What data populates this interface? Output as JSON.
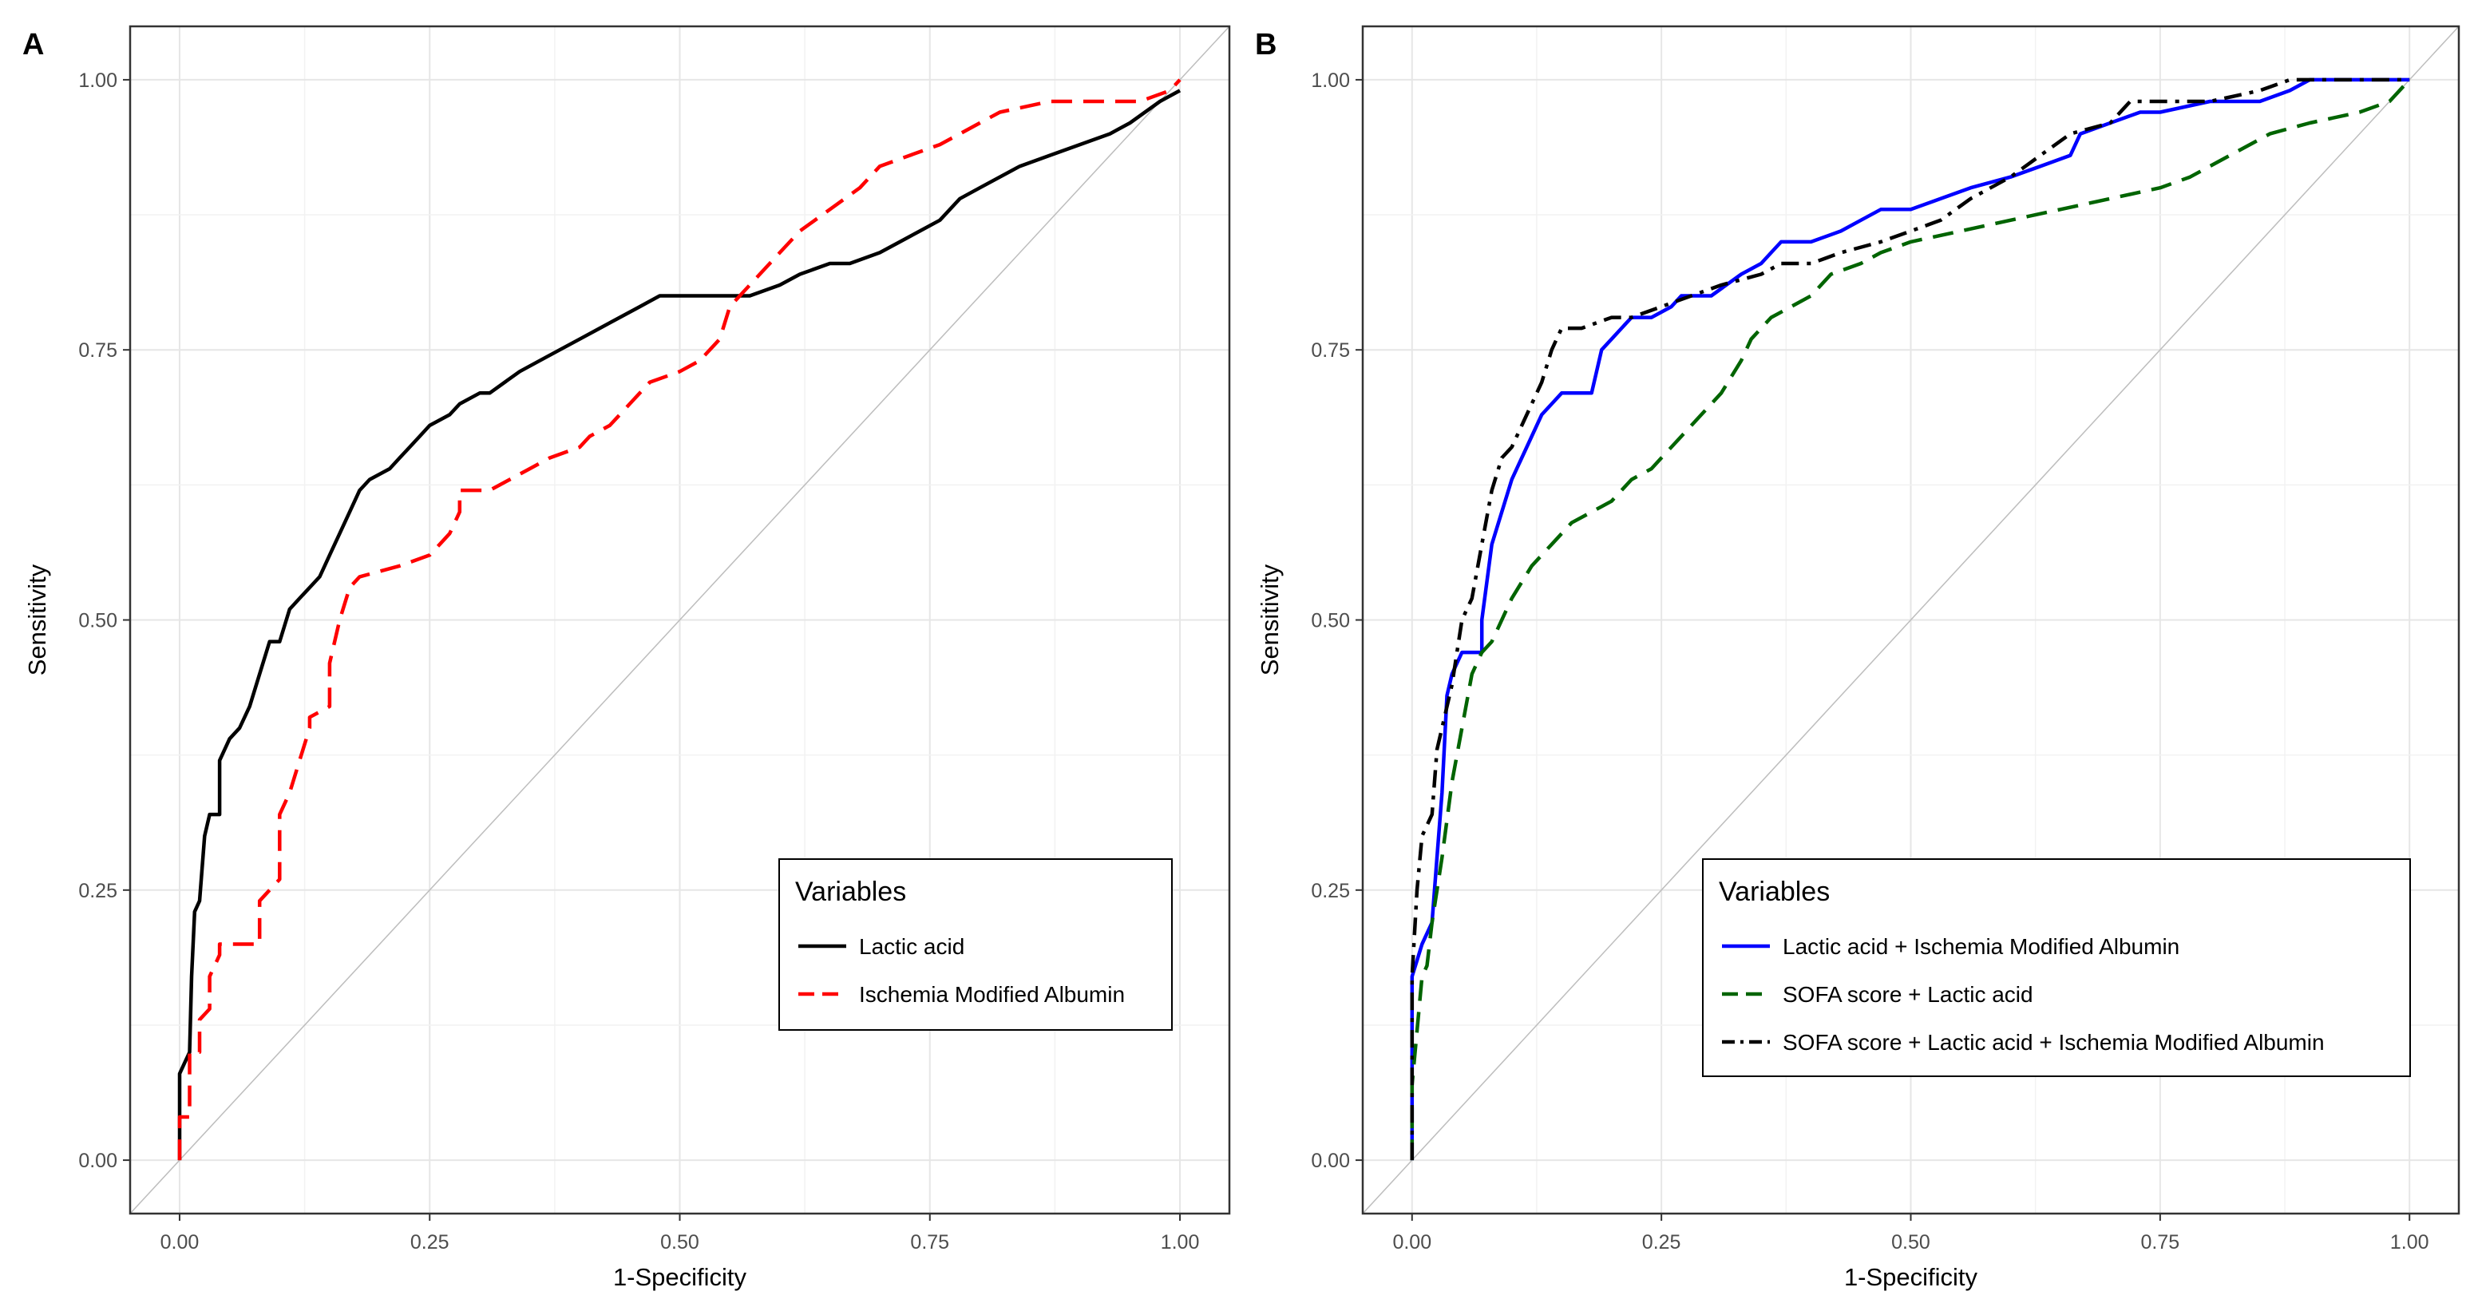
{
  "chart_data": [
    {
      "type": "line",
      "panel_label": "A",
      "xlabel": "1-Specificity",
      "ylabel": "Sensitivity",
      "xlim": [
        0,
        1
      ],
      "ylim": [
        0,
        1
      ],
      "xticks": [
        "0.00",
        "0.25",
        "0.50",
        "0.75",
        "1.00"
      ],
      "yticks": [
        "0.00",
        "0.25",
        "0.50",
        "0.75",
        "1.00"
      ],
      "grid": true,
      "reference_line": "diagonal",
      "legend_title": "Variables",
      "legend_position": "bottom-right",
      "series": [
        {
          "name": "Lactic acid",
          "color": "#000000",
          "dash": "solid",
          "x": [
            0,
            0,
            0.005,
            0.01,
            0.012,
            0.015,
            0.02,
            0.025,
            0.03,
            0.04,
            0.04,
            0.05,
            0.06,
            0.07,
            0.08,
            0.09,
            0.1,
            0.11,
            0.12,
            0.14,
            0.15,
            0.16,
            0.17,
            0.18,
            0.19,
            0.21,
            0.22,
            0.23,
            0.24,
            0.25,
            0.27,
            0.28,
            0.3,
            0.31,
            0.34,
            0.36,
            0.38,
            0.4,
            0.42,
            0.44,
            0.46,
            0.48,
            0.5,
            0.52,
            0.54,
            0.57,
            0.6,
            0.62,
            0.65,
            0.67,
            0.7,
            0.72,
            0.74,
            0.76,
            0.78,
            0.8,
            0.84,
            0.87,
            0.9,
            0.93,
            0.95,
            0.98,
            1.0
          ],
          "y": [
            0,
            0.08,
            0.09,
            0.1,
            0.17,
            0.23,
            0.24,
            0.3,
            0.32,
            0.32,
            0.37,
            0.39,
            0.4,
            0.42,
            0.45,
            0.48,
            0.48,
            0.51,
            0.52,
            0.54,
            0.56,
            0.58,
            0.6,
            0.62,
            0.63,
            0.64,
            0.65,
            0.66,
            0.67,
            0.68,
            0.69,
            0.7,
            0.71,
            0.71,
            0.73,
            0.74,
            0.75,
            0.76,
            0.77,
            0.78,
            0.79,
            0.8,
            0.8,
            0.8,
            0.8,
            0.8,
            0.81,
            0.82,
            0.83,
            0.83,
            0.84,
            0.85,
            0.86,
            0.87,
            0.89,
            0.9,
            0.92,
            0.93,
            0.94,
            0.95,
            0.96,
            0.98,
            0.99
          ]
        },
        {
          "name": "Ischemia Modified Albumin",
          "color": "#ff0000",
          "dash": "dashed",
          "x": [
            0,
            0,
            0.01,
            0.01,
            0.02,
            0.02,
            0.03,
            0.03,
            0.04,
            0.04,
            0.08,
            0.08,
            0.09,
            0.1,
            0.1,
            0.11,
            0.12,
            0.13,
            0.13,
            0.15,
            0.15,
            0.16,
            0.17,
            0.18,
            0.18,
            0.22,
            0.25,
            0.26,
            0.27,
            0.28,
            0.28,
            0.31,
            0.33,
            0.35,
            0.37,
            0.4,
            0.41,
            0.43,
            0.45,
            0.47,
            0.5,
            0.52,
            0.54,
            0.55,
            0.56,
            0.58,
            0.6,
            0.62,
            0.65,
            0.68,
            0.7,
            0.73,
            0.76,
            0.78,
            0.8,
            0.82,
            0.87,
            0.92,
            0.96,
            0.99,
            1.0
          ],
          "y": [
            0,
            0.04,
            0.04,
            0.1,
            0.1,
            0.13,
            0.14,
            0.17,
            0.19,
            0.2,
            0.2,
            0.24,
            0.25,
            0.26,
            0.32,
            0.34,
            0.37,
            0.4,
            0.41,
            0.42,
            0.46,
            0.5,
            0.53,
            0.54,
            0.54,
            0.55,
            0.56,
            0.57,
            0.58,
            0.6,
            0.62,
            0.62,
            0.63,
            0.64,
            0.65,
            0.66,
            0.67,
            0.68,
            0.7,
            0.72,
            0.73,
            0.74,
            0.76,
            0.79,
            0.8,
            0.82,
            0.84,
            0.86,
            0.88,
            0.9,
            0.92,
            0.93,
            0.94,
            0.95,
            0.96,
            0.97,
            0.98,
            0.98,
            0.98,
            0.99,
            1.0
          ]
        }
      ]
    },
    {
      "type": "line",
      "panel_label": "B",
      "xlabel": "1-Specificity",
      "ylabel": "Sensitivity",
      "xlim": [
        0,
        1
      ],
      "ylim": [
        0,
        1
      ],
      "xticks": [
        "0.00",
        "0.25",
        "0.50",
        "0.75",
        "1.00"
      ],
      "yticks": [
        "0.00",
        "0.25",
        "0.50",
        "0.75",
        "1.00"
      ],
      "grid": true,
      "reference_line": "diagonal",
      "legend_title": "Variables",
      "legend_position": "bottom-center",
      "series": [
        {
          "name": "Lactic acid + Ischemia Modified Albumin",
          "color": "#0000ff",
          "dash": "solid",
          "x": [
            0,
            0,
            0.01,
            0.02,
            0.025,
            0.03,
            0.035,
            0.04,
            0.05,
            0.06,
            0.07,
            0.07,
            0.08,
            0.09,
            0.1,
            0.11,
            0.12,
            0.13,
            0.14,
            0.15,
            0.16,
            0.18,
            0.19,
            0.2,
            0.21,
            0.22,
            0.24,
            0.26,
            0.27,
            0.3,
            0.33,
            0.35,
            0.36,
            0.37,
            0.4,
            0.43,
            0.45,
            0.47,
            0.5,
            0.53,
            0.56,
            0.6,
            0.63,
            0.66,
            0.67,
            0.7,
            0.73,
            0.75,
            0.8,
            0.85,
            0.88,
            0.9,
            0.95,
            1.0
          ],
          "y": [
            0,
            0.17,
            0.2,
            0.22,
            0.28,
            0.34,
            0.43,
            0.45,
            0.47,
            0.47,
            0.47,
            0.5,
            0.57,
            0.6,
            0.63,
            0.65,
            0.67,
            0.69,
            0.7,
            0.71,
            0.71,
            0.71,
            0.75,
            0.76,
            0.77,
            0.78,
            0.78,
            0.79,
            0.8,
            0.8,
            0.82,
            0.83,
            0.84,
            0.85,
            0.85,
            0.86,
            0.87,
            0.88,
            0.88,
            0.89,
            0.9,
            0.91,
            0.92,
            0.93,
            0.95,
            0.96,
            0.97,
            0.97,
            0.98,
            0.98,
            0.99,
            1.0,
            1.0,
            1.0
          ]
        },
        {
          "name": "SOFA score + Lactic acid",
          "color": "#006400",
          "dash": "dashed",
          "x": [
            0,
            0,
            0.01,
            0.015,
            0.02,
            0.03,
            0.04,
            0.05,
            0.06,
            0.07,
            0.08,
            0.1,
            0.12,
            0.14,
            0.16,
            0.18,
            0.2,
            0.22,
            0.24,
            0.25,
            0.27,
            0.29,
            0.31,
            0.33,
            0.34,
            0.35,
            0.36,
            0.38,
            0.4,
            0.42,
            0.45,
            0.47,
            0.5,
            0.55,
            0.6,
            0.65,
            0.7,
            0.75,
            0.78,
            0.82,
            0.86,
            0.9,
            0.95,
            0.98,
            1.0
          ],
          "y": [
            0,
            0.07,
            0.17,
            0.18,
            0.22,
            0.28,
            0.35,
            0.4,
            0.45,
            0.47,
            0.48,
            0.52,
            0.55,
            0.57,
            0.59,
            0.6,
            0.61,
            0.63,
            0.64,
            0.65,
            0.67,
            0.69,
            0.71,
            0.74,
            0.76,
            0.77,
            0.78,
            0.79,
            0.8,
            0.82,
            0.83,
            0.84,
            0.85,
            0.86,
            0.87,
            0.88,
            0.89,
            0.9,
            0.91,
            0.93,
            0.95,
            0.96,
            0.97,
            0.98,
            1.0
          ]
        },
        {
          "name": "SOFA score + Lactic acid + Ischemia Modified Albumin",
          "color": "#000000",
          "dash": "dotdash",
          "x": [
            0,
            0,
            0.005,
            0.01,
            0.02,
            0.025,
            0.03,
            0.04,
            0.05,
            0.06,
            0.07,
            0.08,
            0.09,
            0.1,
            0.11,
            0.12,
            0.13,
            0.14,
            0.15,
            0.17,
            0.2,
            0.22,
            0.25,
            0.28,
            0.31,
            0.35,
            0.37,
            0.4,
            0.43,
            0.47,
            0.5,
            0.53,
            0.56,
            0.6,
            0.63,
            0.66,
            0.7,
            0.72,
            0.76,
            0.8,
            0.85,
            0.88,
            0.92,
            0.96,
            1.0
          ],
          "y": [
            0,
            0.17,
            0.25,
            0.3,
            0.32,
            0.38,
            0.4,
            0.44,
            0.5,
            0.52,
            0.57,
            0.62,
            0.65,
            0.66,
            0.68,
            0.7,
            0.72,
            0.75,
            0.77,
            0.77,
            0.78,
            0.78,
            0.79,
            0.8,
            0.81,
            0.82,
            0.83,
            0.83,
            0.84,
            0.85,
            0.86,
            0.87,
            0.89,
            0.91,
            0.93,
            0.95,
            0.96,
            0.98,
            0.98,
            0.98,
            0.99,
            1.0,
            1.0,
            1.0,
            1.0
          ]
        }
      ]
    }
  ]
}
